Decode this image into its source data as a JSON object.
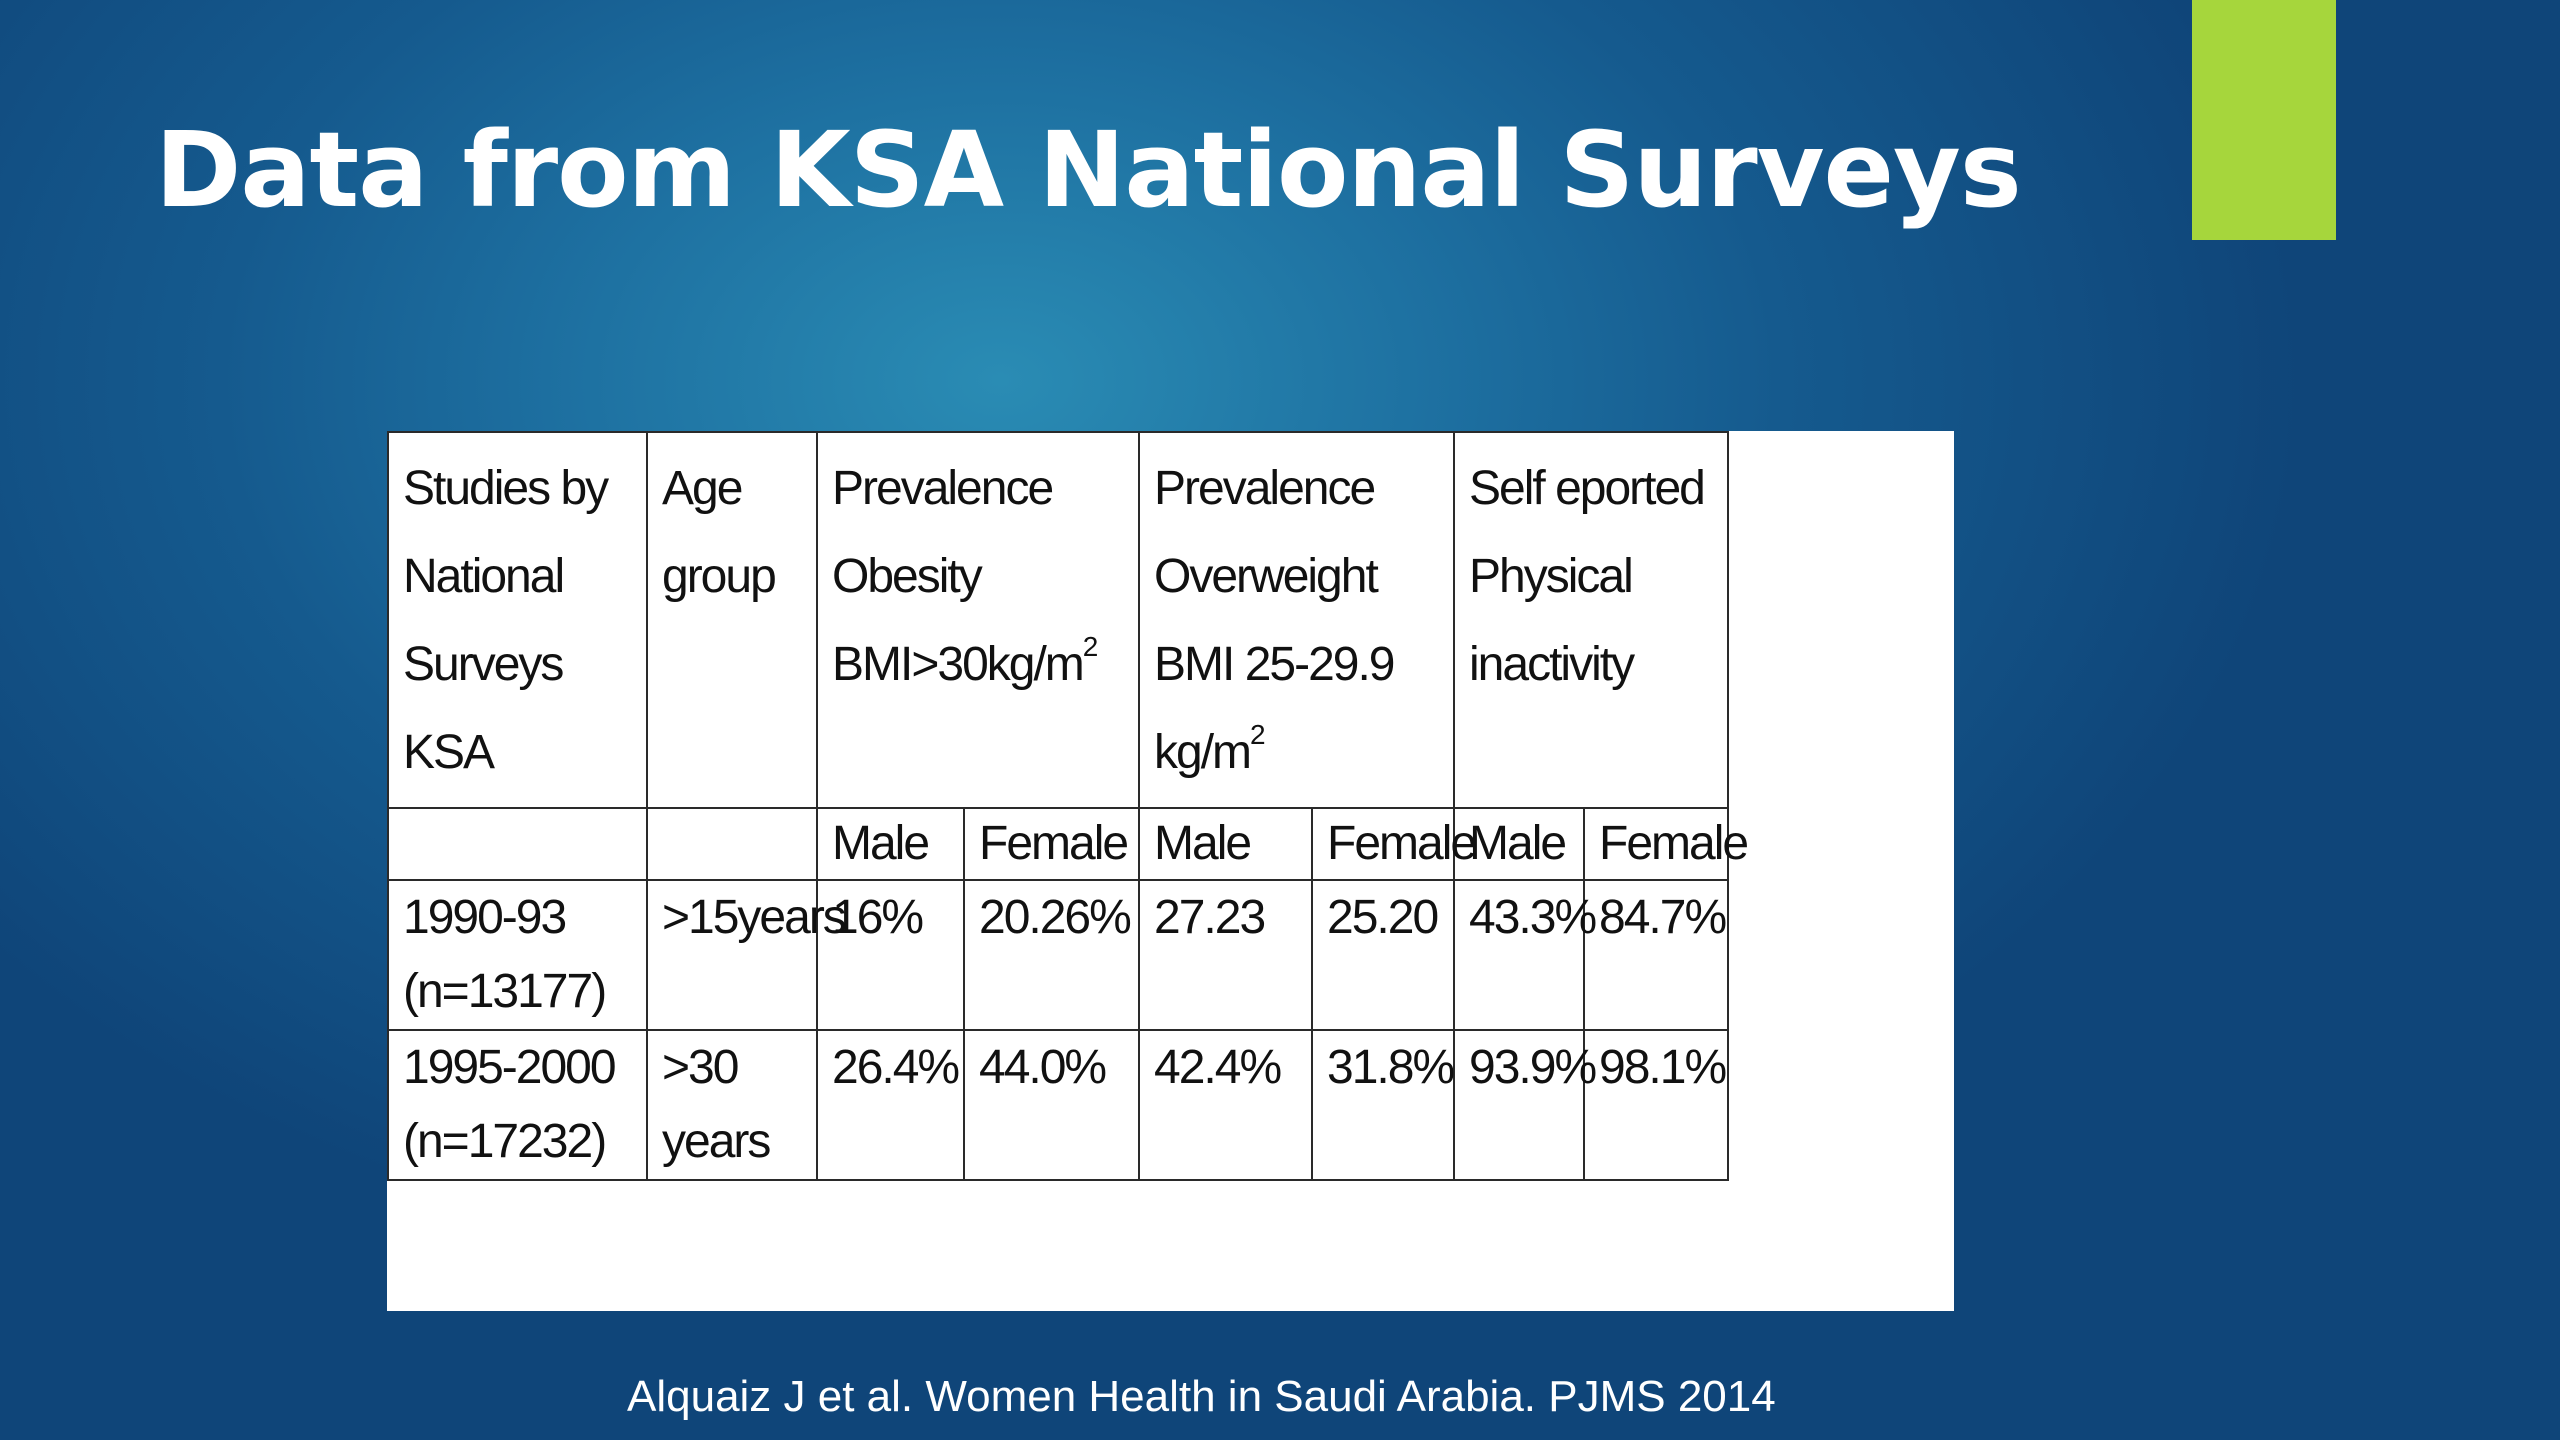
{
  "title": "Data from KSA National Surveys",
  "table": {
    "header": {
      "studies": [
        "Studies by",
        "National",
        "Surveys",
        "KSA"
      ],
      "age": [
        "Age",
        "group"
      ],
      "obesity": [
        "Prevalence",
        "Obesity",
        "BMI>30kg/m"
      ],
      "obesity_sup": "2",
      "overweight": [
        "Prevalence",
        "Overweight",
        "BMI 25-29.9",
        "kg/m"
      ],
      "overweight_sup": "2",
      "inactivity": [
        "Self eported",
        "Physical",
        "inactivity"
      ]
    },
    "subheader": [
      "Male",
      "Female",
      "Male",
      "Female",
      "Male",
      "Female"
    ],
    "rows": [
      {
        "study": [
          "1990-93",
          "(n=13177)"
        ],
        "age": ">15years",
        "values": [
          "16%",
          "20.26%",
          "27.23",
          "25.20",
          "43.3%",
          "84.7%"
        ]
      },
      {
        "study": [
          "1995-2000",
          "(n=17232)"
        ],
        "age": ">30 years",
        "values": [
          "26.4%",
          "44.0%",
          "42.4%",
          "31.8%",
          "93.9%",
          "98.1%"
        ]
      }
    ]
  },
  "citation": "Alquaiz J et al.  Women Health in Saudi Arabia. PJMS 2014",
  "colors": {
    "accent": "#a6d63c",
    "background": "#155a8e"
  }
}
